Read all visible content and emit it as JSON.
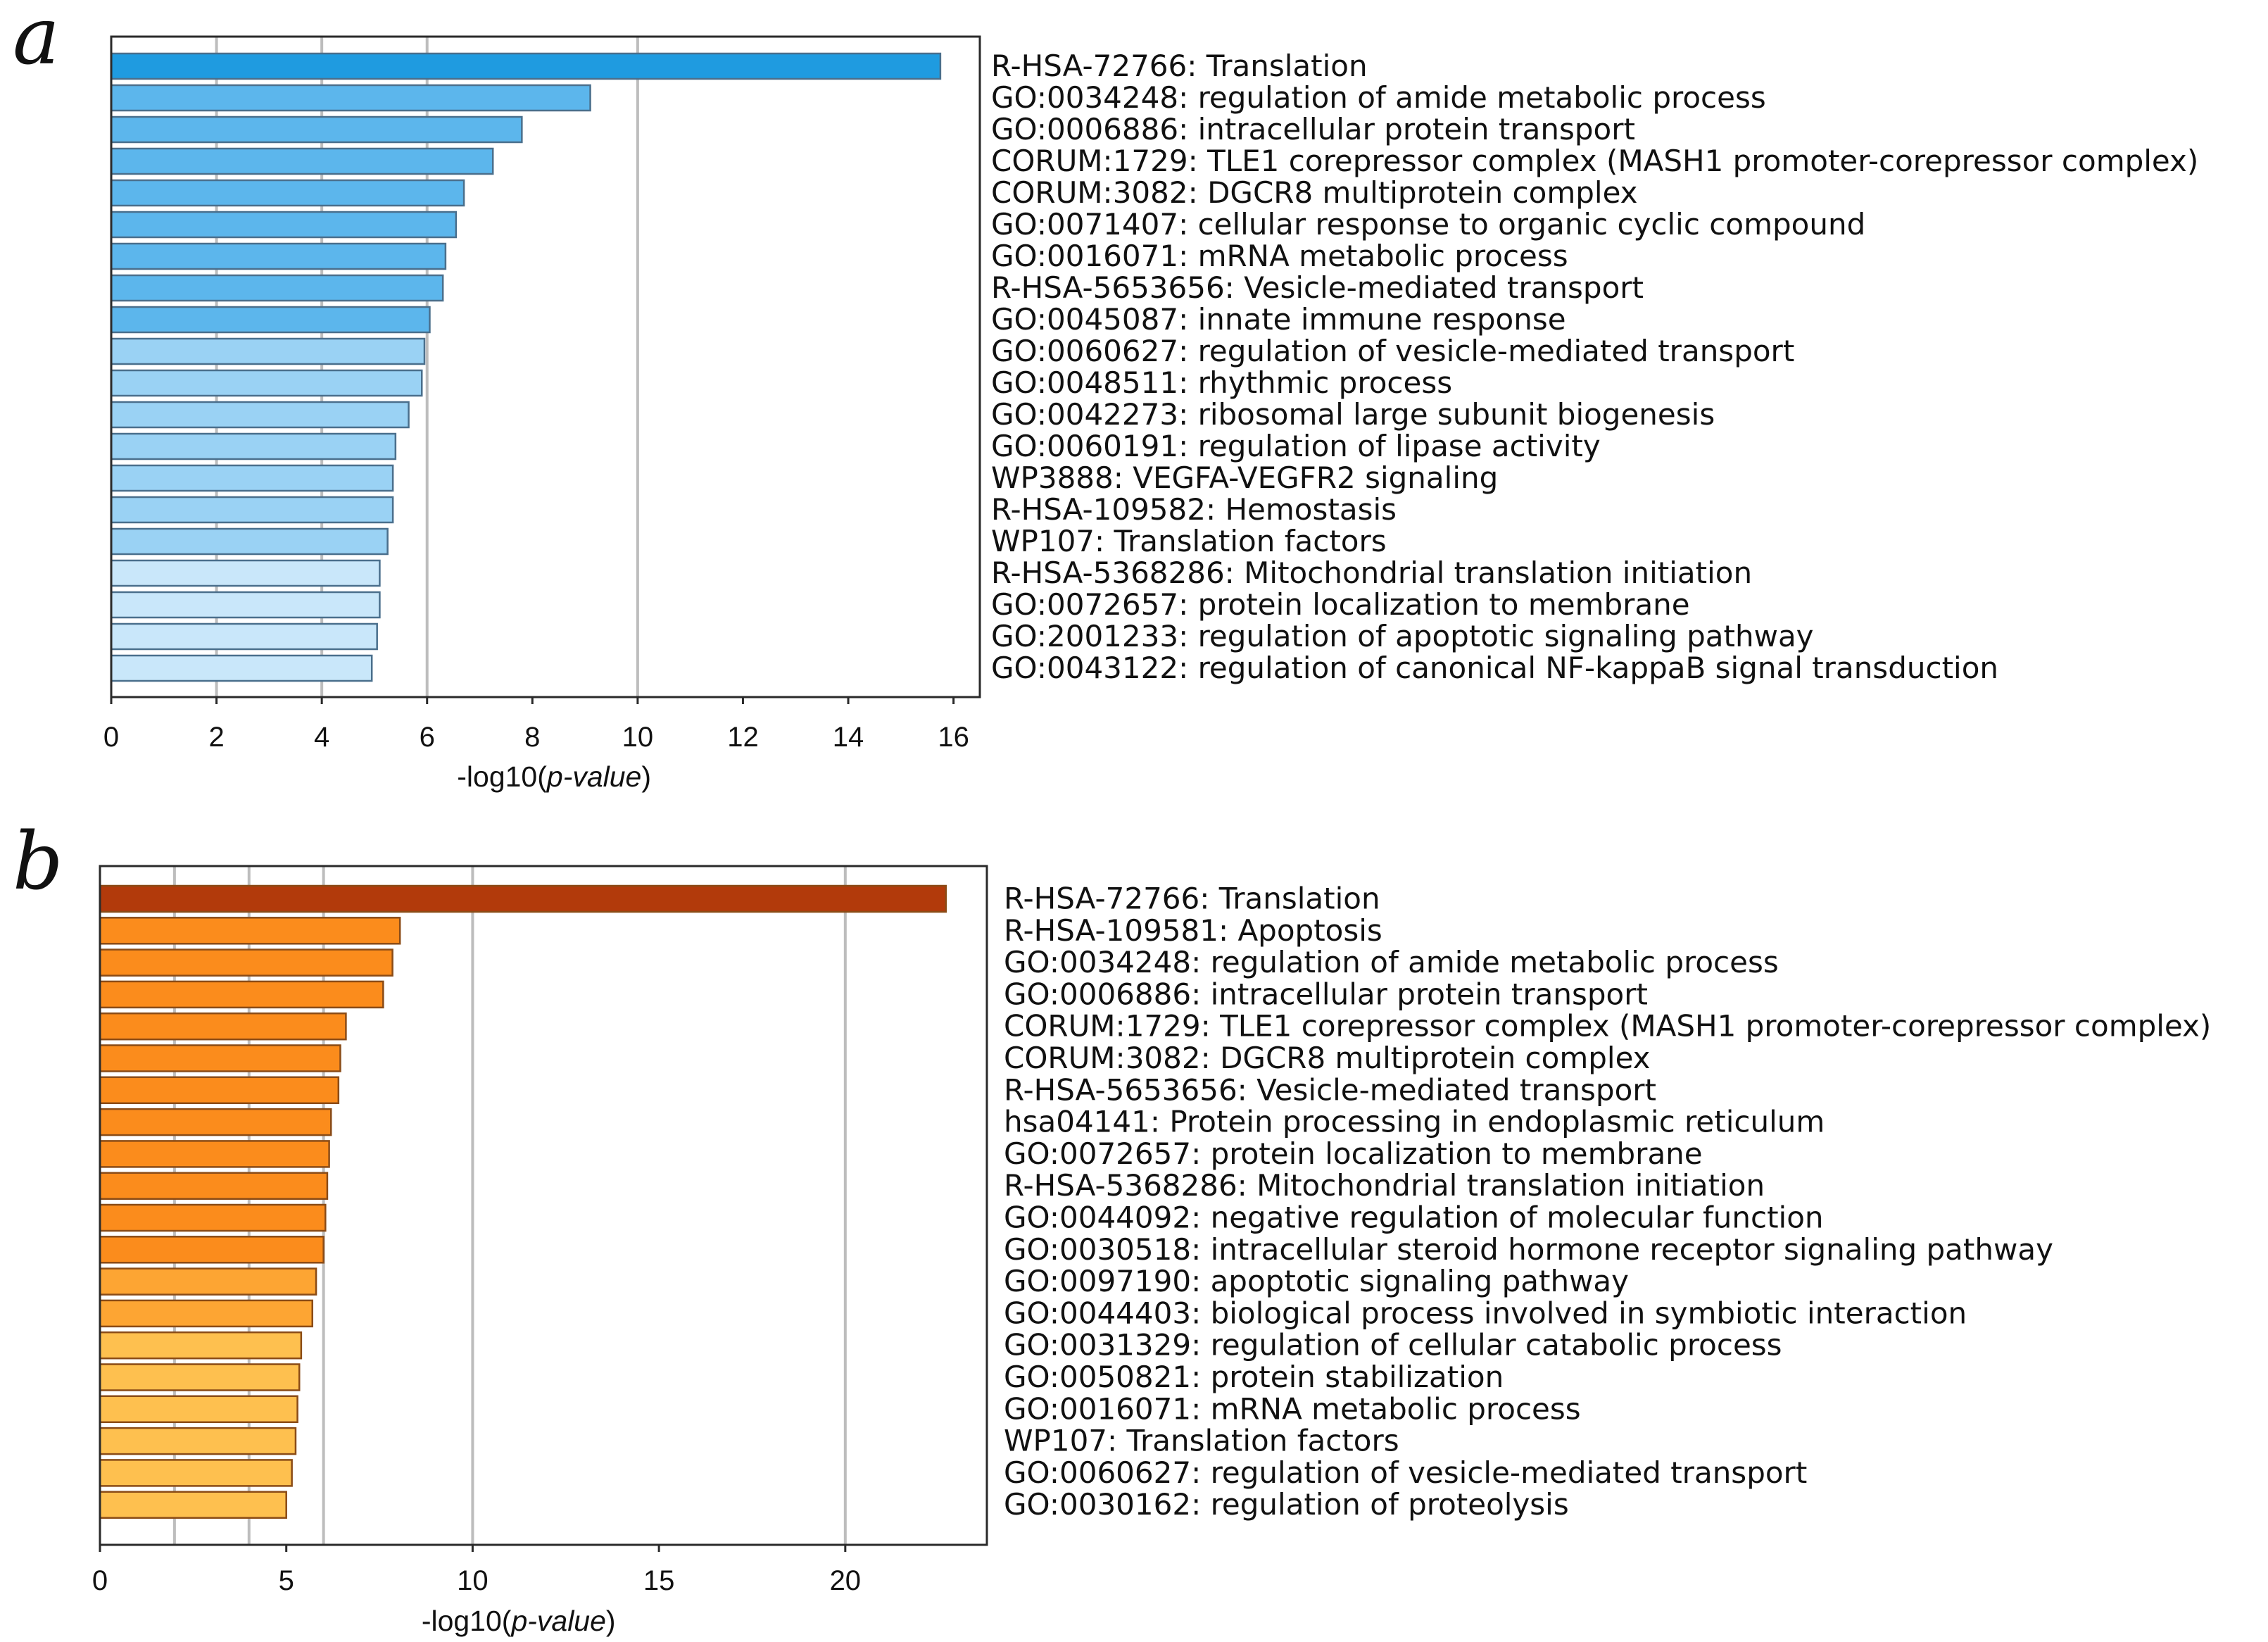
{
  "chart_data": [
    {
      "panel_letter": "a",
      "type": "bar",
      "orientation": "horizontal",
      "xlabel_prefix": "-log10(",
      "xlabel_italic": "p-value",
      "xlabel_suffix": ")",
      "xlim": [
        0,
        16.5
      ],
      "xticks": [
        0,
        2,
        4,
        6,
        8,
        10,
        12,
        14,
        16
      ],
      "gridlines": [
        2,
        4,
        6,
        10
      ],
      "grid": "vertical",
      "palette": {
        "top": "#1f9be0",
        "high": "#5cb6ec",
        "mid": "#9ad2f4",
        "low": "#c9e7fa",
        "edge": "#4a6f8c"
      },
      "categories": [
        "R-HSA-72766: Translation",
        "GO:0034248: regulation of amide metabolic process",
        "GO:0006886: intracellular protein transport",
        "CORUM:1729: TLE1 corepressor complex (MASH1 promoter-corepressor complex)",
        "CORUM:3082: DGCR8 multiprotein complex",
        "GO:0071407: cellular response to organic cyclic compound",
        "GO:0016071: mRNA metabolic process",
        "R-HSA-5653656: Vesicle-mediated transport",
        "GO:0045087: innate immune response",
        "GO:0060627: regulation of vesicle-mediated transport",
        "GO:0048511: rhythmic process",
        "GO:0042273: ribosomal large subunit biogenesis",
        "GO:0060191: regulation of lipase activity",
        "WP3888: VEGFA-VEGFR2 signaling",
        "R-HSA-109582: Hemostasis",
        "WP107: Translation factors",
        "R-HSA-5368286: Mitochondrial translation initiation",
        "GO:0072657: protein localization to membrane",
        "GO:2001233: regulation of apoptotic signaling pathway",
        "GO:0043122: regulation of canonical NF-kappaB signal transduction"
      ],
      "values": [
        15.75,
        9.1,
        7.8,
        7.25,
        6.7,
        6.55,
        6.35,
        6.3,
        6.05,
        5.95,
        5.9,
        5.65,
        5.4,
        5.35,
        5.35,
        5.25,
        5.1,
        5.1,
        5.05,
        4.95
      ],
      "color_level": [
        "top",
        "high",
        "high",
        "high",
        "high",
        "high",
        "high",
        "high",
        "high",
        "mid",
        "mid",
        "mid",
        "mid",
        "mid",
        "mid",
        "mid",
        "low",
        "low",
        "low",
        "low"
      ]
    },
    {
      "panel_letter": "b",
      "type": "bar",
      "orientation": "horizontal",
      "xlabel_prefix": "-log10(",
      "xlabel_italic": "p-value",
      "xlabel_suffix": ")",
      "xlim": [
        0,
        23.8
      ],
      "xticks": [
        0,
        5,
        10,
        15,
        20
      ],
      "gridlines": [
        2,
        4,
        6,
        10,
        20
      ],
      "grid": "vertical",
      "palette": {
        "top": "#b23a0b",
        "high": "#fb8c1c",
        "mid": "#fda533",
        "low": "#fec04f",
        "edge": "#8a4b16"
      },
      "categories": [
        "R-HSA-72766: Translation",
        "R-HSA-109581: Apoptosis",
        "GO:0034248: regulation of amide metabolic process",
        "GO:0006886: intracellular protein transport",
        "CORUM:1729: TLE1 corepressor complex (MASH1 promoter-corepressor complex)",
        "CORUM:3082: DGCR8 multiprotein complex",
        "R-HSA-5653656: Vesicle-mediated transport",
        "hsa04141: Protein processing in endoplasmic reticulum",
        "GO:0072657: protein localization to membrane",
        "R-HSA-5368286: Mitochondrial translation initiation",
        "GO:0044092: negative regulation of molecular function",
        "GO:0030518: intracellular steroid hormone receptor signaling pathway",
        "GO:0097190: apoptotic signaling pathway",
        "GO:0044403: biological process involved in symbiotic interaction",
        "GO:0031329: regulation of cellular catabolic process",
        "GO:0050821: protein stabilization",
        "GO:0016071: mRNA metabolic process",
        "WP107: Translation factors",
        "GO:0060627: regulation of vesicle-mediated transport",
        "GO:0030162: regulation of proteolysis"
      ],
      "values": [
        22.7,
        8.05,
        7.85,
        7.6,
        6.6,
        6.45,
        6.4,
        6.2,
        6.15,
        6.1,
        6.05,
        6.0,
        5.8,
        5.7,
        5.4,
        5.35,
        5.3,
        5.25,
        5.15,
        5.0
      ],
      "color_level": [
        "top",
        "high",
        "high",
        "high",
        "high",
        "high",
        "high",
        "high",
        "high",
        "high",
        "high",
        "high",
        "mid",
        "mid",
        "low",
        "low",
        "low",
        "low",
        "low",
        "low"
      ]
    }
  ]
}
